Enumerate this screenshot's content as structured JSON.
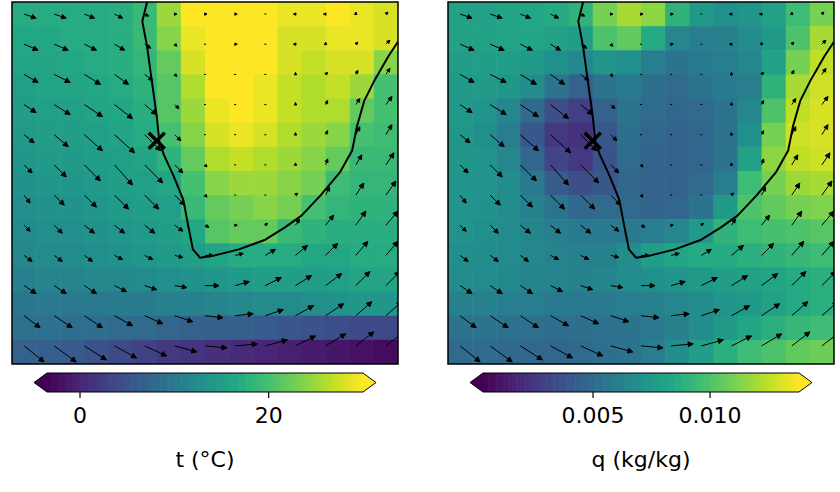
{
  "map": {
    "coastline": {
      "lon": [
        16.2,
        15.8,
        16.2,
        16.6,
        17.0,
        17.2,
        17.6,
        18.4,
        19.2,
        19.6,
        20.0,
        20.6,
        21.8,
        23.8,
        26.0,
        27.6,
        29.0,
        30.6,
        32.2,
        33.2,
        33.6,
        34.2,
        35.0,
        36.2,
        37.0
      ],
      "lat": [
        -15.0,
        -16.6,
        -18.7,
        -21.6,
        -24.5,
        -26.5,
        -27.7,
        -29.4,
        -31.4,
        -33.5,
        -35.5,
        -36.2,
        -36.0,
        -35.5,
        -34.7,
        -33.7,
        -32.7,
        -31.0,
        -29.1,
        -27.3,
        -25.3,
        -23.2,
        -21.6,
        -19.5,
        -18.3
      ]
    },
    "marker": {
      "lon": 17.0,
      "lat": -26.5
    },
    "wind": {
      "lon": [
        6,
        8.5,
        11,
        13.5,
        16,
        18.5,
        21,
        23.5,
        26,
        28.5,
        31,
        33.5,
        36
      ],
      "lat": [
        -16,
        -18.5,
        -21,
        -23.5,
        -26,
        -28.5,
        -31,
        -33.5,
        -36,
        -38.5,
        -41,
        -43.5
      ],
      "u": [
        [
          6,
          6,
          5,
          4,
          2,
          1,
          1,
          1,
          0,
          -1,
          -1,
          0,
          1
        ],
        [
          7,
          7,
          6,
          5,
          3,
          1,
          0,
          1,
          0,
          -1,
          0,
          1,
          2
        ],
        [
          7,
          8,
          8,
          7,
          4,
          1,
          0,
          0,
          0,
          0,
          1,
          1,
          2
        ],
        [
          6,
          8,
          9,
          9,
          6,
          2,
          0,
          0,
          0,
          0,
          1,
          2,
          3
        ],
        [
          5,
          7,
          9,
          10,
          8,
          3,
          0,
          0,
          0,
          0,
          1,
          2,
          3
        ],
        [
          4,
          6,
          8,
          9,
          9,
          4,
          1,
          0,
          0,
          0,
          1,
          3,
          4
        ],
        [
          3,
          5,
          6,
          7,
          7,
          5,
          1,
          0,
          0,
          1,
          2,
          4,
          5
        ],
        [
          3,
          4,
          5,
          5,
          5,
          4,
          2,
          1,
          1,
          2,
          4,
          5,
          6
        ],
        [
          4,
          4,
          4,
          4,
          4,
          4,
          4,
          4,
          5,
          6,
          6,
          6,
          6
        ],
        [
          6,
          6,
          6,
          6,
          6,
          6,
          7,
          7,
          8,
          8,
          8,
          7,
          7
        ],
        [
          8,
          9,
          9,
          9,
          9,
          9,
          9,
          9,
          9,
          9,
          9,
          8,
          8
        ],
        [
          10,
          11,
          11,
          11,
          11,
          11,
          11,
          11,
          11,
          10,
          10,
          9,
          9
        ]
      ],
      "v": [
        [
          -2,
          -2,
          -2,
          -2,
          -1,
          0,
          0,
          0,
          0,
          0,
          0,
          1,
          1
        ],
        [
          -3,
          -3,
          -3,
          -3,
          -2,
          -1,
          0,
          0,
          0,
          0,
          1,
          1,
          2
        ],
        [
          -4,
          -4,
          -5,
          -5,
          -3,
          -1,
          0,
          0,
          0,
          1,
          1,
          2,
          3
        ],
        [
          -4,
          -5,
          -6,
          -7,
          -5,
          -2,
          0,
          0,
          0,
          1,
          2,
          3,
          4
        ],
        [
          -4,
          -6,
          -8,
          -9,
          -8,
          -3,
          0,
          0,
          0,
          1,
          2,
          4,
          5
        ],
        [
          -4,
          -6,
          -8,
          -10,
          -9,
          -4,
          -1,
          0,
          0,
          1,
          3,
          5,
          6
        ],
        [
          -4,
          -5,
          -6,
          -7,
          -7,
          -5,
          -1,
          0,
          0,
          1,
          4,
          6,
          7
        ],
        [
          -3,
          -4,
          -4,
          -4,
          -4,
          -3,
          -1,
          0,
          1,
          3,
          5,
          7,
          7
        ],
        [
          -3,
          -3,
          -3,
          -2,
          -2,
          -1,
          0,
          1,
          3,
          5,
          6,
          7,
          7
        ],
        [
          -4,
          -4,
          -4,
          -3,
          -2,
          -1,
          0,
          2,
          4,
          5,
          6,
          7,
          7
        ],
        [
          -6,
          -6,
          -6,
          -5,
          -4,
          -3,
          -1,
          1,
          3,
          5,
          6,
          7,
          7
        ],
        [
          -8,
          -8,
          -7,
          -6,
          -5,
          -3,
          -1,
          1,
          3,
          5,
          6,
          7,
          7
        ]
      ]
    }
  },
  "chart_data": [
    {
      "type": "heatmap",
      "tick_labels": false,
      "x": [
        6,
        8,
        10,
        12,
        14,
        16,
        18,
        20,
        22,
        24,
        26,
        28,
        30,
        32,
        34,
        36
      ],
      "y": [
        -16,
        -18,
        -20,
        -22,
        -24,
        -26,
        -28,
        -30,
        -32,
        -34,
        -36,
        -38,
        -40,
        -42,
        -44
      ],
      "xlim": [
        5,
        37
      ],
      "ylim": [
        -45,
        -15
      ],
      "cells": [
        [
          17,
          17,
          17,
          17,
          17.5,
          19,
          25,
          30,
          31,
          31,
          30,
          29,
          29,
          30,
          29,
          28
        ],
        [
          16.5,
          16.5,
          17,
          17,
          17.5,
          19,
          24,
          29,
          31,
          31,
          30,
          28,
          28,
          29,
          29,
          28
        ],
        [
          16,
          16,
          16.5,
          17,
          17.5,
          18.5,
          22,
          28,
          30,
          31,
          30,
          28,
          27,
          28,
          28,
          24
        ],
        [
          15.5,
          16,
          16,
          16.5,
          17,
          18,
          21,
          26,
          30,
          30,
          29,
          27,
          26,
          27,
          25,
          20
        ],
        [
          15,
          15.5,
          15.5,
          16,
          16.5,
          17.5,
          21,
          25,
          29,
          30,
          29,
          27,
          26,
          26,
          22,
          20
        ],
        [
          14.5,
          15,
          15,
          15.5,
          16,
          17,
          20,
          24,
          28,
          29,
          28,
          26,
          25,
          24,
          20,
          19.5
        ],
        [
          14,
          14.5,
          14.5,
          15,
          15.5,
          16,
          18,
          22,
          26,
          27,
          26,
          25,
          24,
          22,
          19,
          19
        ],
        [
          13.5,
          14,
          14,
          14.5,
          15,
          15.5,
          16.5,
          20,
          24,
          25,
          25,
          24,
          23,
          19.5,
          18.5,
          18.5
        ],
        [
          13,
          13.5,
          13.5,
          14,
          14.5,
          15,
          15.5,
          19,
          22,
          23,
          24,
          23,
          20,
          18.5,
          18,
          18
        ],
        [
          12.5,
          13,
          13,
          13.5,
          14,
          14.5,
          15,
          16.5,
          21,
          22,
          22,
          19,
          18,
          17.5,
          17.5,
          17.5
        ],
        [
          12,
          12.5,
          12.5,
          13,
          13.5,
          14,
          14.5,
          15,
          16,
          17,
          17,
          17,
          16.5,
          16.5,
          17,
          17
        ],
        [
          11,
          11.5,
          11.5,
          12,
          12,
          12.5,
          13,
          13.5,
          14,
          14.5,
          15,
          15,
          15,
          15.5,
          16,
          16
        ],
        [
          9.5,
          10,
          10,
          10,
          10.5,
          10.5,
          11,
          11,
          11.5,
          12,
          12.5,
          12.5,
          13,
          13.5,
          14,
          14
        ],
        [
          9,
          9,
          8.5,
          8.5,
          8,
          8,
          7.5,
          7,
          6.5,
          6.5,
          6,
          5.5,
          5,
          4.5,
          4,
          4
        ],
        [
          7,
          6.5,
          6,
          5,
          4,
          3,
          2,
          1.5,
          1,
          0.5,
          0,
          -0.5,
          -1,
          -1.5,
          -2,
          -2.5
        ]
      ],
      "colorbar": {
        "label": "t (°C)",
        "range": [
          -3.5,
          30
        ],
        "ticks": [
          0,
          20
        ]
      }
    },
    {
      "type": "heatmap",
      "tick_labels": false,
      "x": [
        6,
        8,
        10,
        12,
        14,
        16,
        18,
        20,
        22,
        24,
        26,
        28,
        30,
        32,
        34,
        36
      ],
      "y": [
        -16,
        -18,
        -20,
        -22,
        -24,
        -26,
        -28,
        -30,
        -32,
        -34,
        -36,
        -38,
        -40,
        -42,
        -44
      ],
      "xlim": [
        5,
        37
      ],
      "ylim": [
        -45,
        -15
      ],
      "cells": [
        [
          0.008,
          0.008,
          0.0082,
          0.0083,
          0.0085,
          0.009,
          0.011,
          0.012,
          0.0115,
          0.009,
          0.0075,
          0.007,
          0.0072,
          0.008,
          0.0095,
          0.011
        ],
        [
          0.008,
          0.008,
          0.0081,
          0.0082,
          0.008,
          0.0078,
          0.01,
          0.0105,
          0.0085,
          0.0065,
          0.006,
          0.0062,
          0.0068,
          0.0075,
          0.01,
          0.012
        ],
        [
          0.0078,
          0.0078,
          0.0078,
          0.0076,
          0.007,
          0.0065,
          0.0072,
          0.007,
          0.006,
          0.0055,
          0.0058,
          0.006,
          0.0065,
          0.008,
          0.011,
          0.0125
        ],
        [
          0.0076,
          0.0076,
          0.0074,
          0.0068,
          0.0055,
          0.0045,
          0.0055,
          0.0058,
          0.0052,
          0.005,
          0.0055,
          0.0058,
          0.006,
          0.009,
          0.012,
          0.0128
        ],
        [
          0.0075,
          0.0072,
          0.0065,
          0.005,
          0.0035,
          0.0028,
          0.0045,
          0.0055,
          0.005,
          0.0048,
          0.005,
          0.0055,
          0.0065,
          0.01,
          0.0125,
          0.013
        ],
        [
          0.0074,
          0.007,
          0.006,
          0.004,
          0.0025,
          0.0022,
          0.004,
          0.0052,
          0.0048,
          0.0046,
          0.0048,
          0.0055,
          0.007,
          0.011,
          0.0128,
          0.013
        ],
        [
          0.0074,
          0.0072,
          0.0065,
          0.0048,
          0.003,
          0.0025,
          0.0038,
          0.005,
          0.0046,
          0.0045,
          0.0048,
          0.0055,
          0.008,
          0.0115,
          0.0125,
          0.0128
        ],
        [
          0.0073,
          0.0072,
          0.0068,
          0.0058,
          0.0042,
          0.0035,
          0.004,
          0.0048,
          0.0045,
          0.0045,
          0.005,
          0.006,
          0.0095,
          0.011,
          0.0118,
          0.012
        ],
        [
          0.0072,
          0.0071,
          0.0068,
          0.0062,
          0.0055,
          0.0048,
          0.005,
          0.005,
          0.0046,
          0.0048,
          0.0055,
          0.0075,
          0.01,
          0.0105,
          0.011,
          0.0112
        ],
        [
          0.0071,
          0.007,
          0.0068,
          0.0064,
          0.006,
          0.0058,
          0.0058,
          0.0058,
          0.006,
          0.0065,
          0.0075,
          0.009,
          0.0095,
          0.0098,
          0.01,
          0.0102
        ],
        [
          0.007,
          0.0069,
          0.0067,
          0.0065,
          0.0063,
          0.0062,
          0.0062,
          0.0068,
          0.0078,
          0.0082,
          0.0085,
          0.0085,
          0.0088,
          0.009,
          0.0092,
          0.0095
        ],
        [
          0.0068,
          0.0067,
          0.0066,
          0.0064,
          0.0063,
          0.0062,
          0.0064,
          0.0068,
          0.007,
          0.0072,
          0.0075,
          0.0078,
          0.008,
          0.0082,
          0.0085,
          0.0088
        ],
        [
          0.0062,
          0.0062,
          0.006,
          0.006,
          0.0058,
          0.0058,
          0.0058,
          0.006,
          0.0062,
          0.0065,
          0.0068,
          0.0072,
          0.0075,
          0.008,
          0.0085,
          0.0088
        ],
        [
          0.0055,
          0.0055,
          0.0054,
          0.0053,
          0.0052,
          0.0052,
          0.0053,
          0.0055,
          0.0058,
          0.0062,
          0.0068,
          0.0075,
          0.0082,
          0.0088,
          0.0092,
          0.0095
        ],
        [
          0.005,
          0.005,
          0.0049,
          0.0048,
          0.0048,
          0.005,
          0.0052,
          0.0055,
          0.006,
          0.0068,
          0.0078,
          0.0088,
          0.0095,
          0.01,
          0.0105,
          0.0108
        ]
      ],
      "colorbar": {
        "label": "q (kg/kg)",
        "range": [
          0.0003,
          0.0138
        ],
        "ticks": [
          0.005,
          {
            "value": 0.01,
            "label": "0.010"
          }
        ]
      }
    }
  ]
}
